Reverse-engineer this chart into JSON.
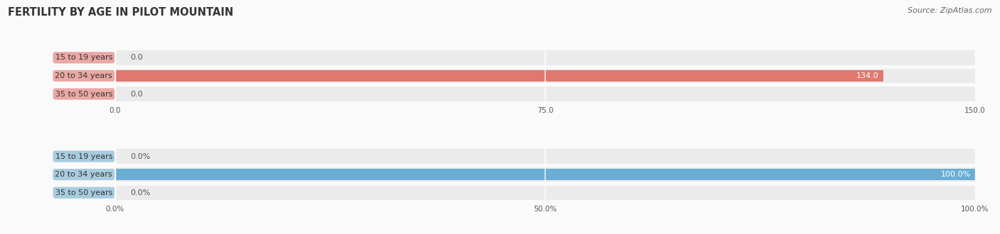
{
  "title": "FERTILITY BY AGE IN PILOT MOUNTAIN",
  "source": "Source: ZipAtlas.com",
  "top_chart": {
    "categories": [
      "15 to 19 years",
      "20 to 34 years",
      "35 to 50 years"
    ],
    "values": [
      0.0,
      134.0,
      0.0
    ],
    "bar_color": "#E07870",
    "bg_color": "#EBEBEB",
    "xlim": [
      0,
      150.0
    ],
    "xticks": [
      0.0,
      75.0,
      150.0
    ],
    "xtick_labels": [
      "0.0",
      "75.0",
      "150.0"
    ],
    "value_labels": [
      "0.0",
      "134.0",
      "0.0"
    ]
  },
  "bottom_chart": {
    "categories": [
      "15 to 19 years",
      "20 to 34 years",
      "35 to 50 years"
    ],
    "values": [
      0.0,
      100.0,
      0.0
    ],
    "bar_color": "#6AAED6",
    "bg_color": "#EBEBEB",
    "xlim": [
      0,
      100.0
    ],
    "xticks": [
      0.0,
      50.0,
      100.0
    ],
    "xtick_labels": [
      "0.0%",
      "50.0%",
      "100.0%"
    ],
    "value_labels": [
      "0.0%",
      "100.0%",
      "0.0%"
    ]
  },
  "label_box_color_top": "#EAA8A4",
  "label_box_color_bottom": "#A8CCDF",
  "background_color": "#FAFAFA",
  "title_fontsize": 10.5,
  "label_fontsize": 8,
  "tick_fontsize": 7.5,
  "source_fontsize": 8
}
